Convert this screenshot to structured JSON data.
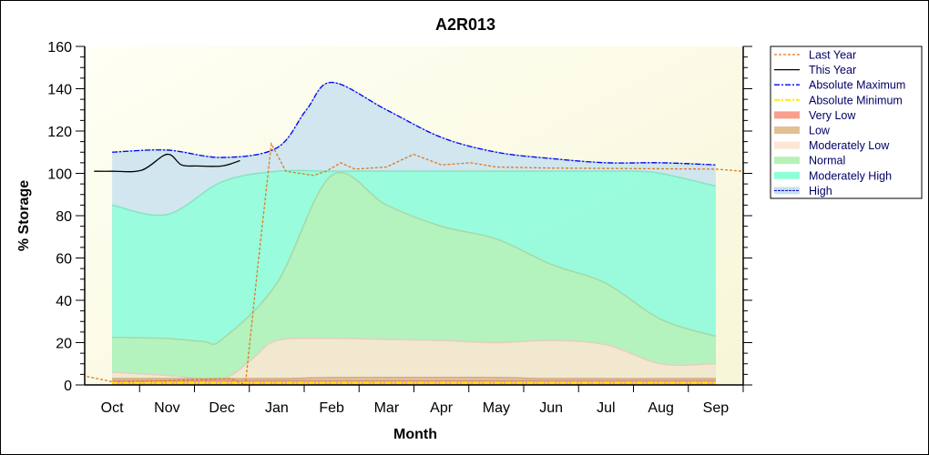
{
  "chart_data": {
    "type": "area",
    "title": "A2R013",
    "xlabel": "Month",
    "ylabel": "% Storage",
    "ylim": [
      0,
      160
    ],
    "yticks": [
      0,
      20,
      40,
      60,
      80,
      100,
      120,
      140,
      160
    ],
    "categories": [
      "Oct",
      "Nov",
      "Dec",
      "Jan",
      "Feb",
      "Mar",
      "Apr",
      "May",
      "Jun",
      "Jul",
      "Aug",
      "Sep"
    ],
    "grid": false,
    "legend_position": "right",
    "bands": [
      {
        "name": "High",
        "color": "#c9e2ee",
        "points": [
          [
            "10-15",
            110
          ],
          [
            "11-15",
            111
          ],
          [
            "12-15",
            107.5
          ],
          [
            "01-15",
            112
          ],
          [
            "02-01",
            130
          ],
          [
            "02-15",
            143
          ],
          [
            "03-15",
            130
          ],
          [
            "04-15",
            117
          ],
          [
            "05-15",
            110
          ],
          [
            "06-15",
            107
          ],
          [
            "07-15",
            105
          ],
          [
            "08-15",
            105
          ],
          [
            "09-15",
            104
          ]
        ]
      },
      {
        "name": "Moderately High",
        "color": "#8fffd8",
        "points": [
          [
            "10-15",
            85
          ],
          [
            "11-15",
            80.5
          ],
          [
            "12-15",
            96
          ],
          [
            "01-15",
            101
          ],
          [
            "02-15",
            101
          ],
          [
            "03-15",
            101
          ],
          [
            "04-15",
            101
          ],
          [
            "05-15",
            101
          ],
          [
            "06-15",
            101
          ],
          [
            "07-15",
            101
          ],
          [
            "08-01",
            101
          ],
          [
            "08-15",
            100
          ],
          [
            "09-15",
            94
          ]
        ]
      },
      {
        "name": "Normal",
        "color": "#b8f0b8",
        "points": [
          [
            "10-15",
            22.5
          ],
          [
            "11-15",
            22
          ],
          [
            "12-05",
            20.5
          ],
          [
            "12-15",
            21.5
          ],
          [
            "01-15",
            48
          ],
          [
            "02-15",
            99
          ],
          [
            "03-15",
            85
          ],
          [
            "04-15",
            75
          ],
          [
            "05-15",
            69
          ],
          [
            "06-15",
            57
          ],
          [
            "07-15",
            48
          ],
          [
            "08-15",
            31
          ],
          [
            "09-15",
            23
          ]
        ]
      },
      {
        "name": "Moderately Low",
        "color": "#fde6d4",
        "points": [
          [
            "10-15",
            6
          ],
          [
            "11-15",
            4.5
          ],
          [
            "12-15",
            3
          ],
          [
            "01-01",
            12
          ],
          [
            "01-15",
            21
          ],
          [
            "02-15",
            22
          ],
          [
            "03-15",
            21.5
          ],
          [
            "04-15",
            21
          ],
          [
            "05-15",
            20
          ],
          [
            "06-15",
            21
          ],
          [
            "07-15",
            19
          ],
          [
            "08-15",
            10
          ],
          [
            "09-15",
            10
          ]
        ]
      },
      {
        "name": "Low",
        "color": "#e2c094",
        "points": [
          [
            "10-15",
            3
          ],
          [
            "01-15",
            3
          ],
          [
            "02-15",
            3.5
          ],
          [
            "05-15",
            3.5
          ],
          [
            "06-15",
            3
          ],
          [
            "09-15",
            3
          ]
        ]
      },
      {
        "name": "Very Low",
        "color": "#f8a08c",
        "points": [
          [
            "10-15",
            2
          ],
          [
            "09-15",
            2
          ]
        ]
      }
    ],
    "series": [
      {
        "name": "Last Year",
        "color": "#e07820",
        "style": "dashed",
        "points": [
          [
            "10-01",
            4
          ],
          [
            "10-15",
            1.5
          ],
          [
            "11-15",
            2
          ],
          [
            "12-01",
            2.5
          ],
          [
            "12-20",
            3
          ],
          [
            "12-28",
            0
          ],
          [
            "01-05",
            60
          ],
          [
            "01-12",
            114
          ],
          [
            "01-20",
            101
          ],
          [
            "02-05",
            99
          ],
          [
            "02-12",
            101
          ],
          [
            "02-20",
            105
          ],
          [
            "02-28",
            102
          ],
          [
            "03-15",
            103
          ],
          [
            "03-30",
            109
          ],
          [
            "04-15",
            104
          ],
          [
            "05-01",
            105
          ],
          [
            "05-15",
            103
          ],
          [
            "06-15",
            102.5
          ],
          [
            "09-15",
            102
          ],
          [
            "09-30",
            101
          ]
        ]
      },
      {
        "name": "This Year",
        "color": "#000000",
        "style": "solid",
        "points": [
          [
            "10-05",
            101
          ],
          [
            "10-15",
            101
          ],
          [
            "11-01",
            101.5
          ],
          [
            "11-15",
            109
          ],
          [
            "11-23",
            104
          ],
          [
            "12-01",
            103.5
          ],
          [
            "12-15",
            103.5
          ],
          [
            "12-25",
            106
          ]
        ]
      },
      {
        "name": "Absolute Maximum",
        "color": "#0000ff",
        "style": "dashdot",
        "points": [
          [
            "10-15",
            110
          ],
          [
            "11-15",
            111
          ],
          [
            "12-15",
            107.5
          ],
          [
            "01-15",
            112
          ],
          [
            "02-01",
            130
          ],
          [
            "02-15",
            143
          ],
          [
            "03-15",
            130
          ],
          [
            "04-15",
            117
          ],
          [
            "05-15",
            110
          ],
          [
            "06-15",
            107
          ],
          [
            "07-15",
            105
          ],
          [
            "08-15",
            105
          ],
          [
            "09-15",
            104
          ]
        ]
      },
      {
        "name": "Absolute Minimum",
        "color": "#ffee00",
        "style": "dashdot",
        "points": [
          [
            "10-15",
            1
          ],
          [
            "09-15",
            1
          ]
        ]
      }
    ],
    "legend": [
      "Last Year",
      "This Year",
      "Absolute Maximum",
      "Absolute Minimum",
      "Very Low",
      "Low",
      "Moderately Low",
      "Normal",
      "Moderately High",
      "High"
    ]
  }
}
